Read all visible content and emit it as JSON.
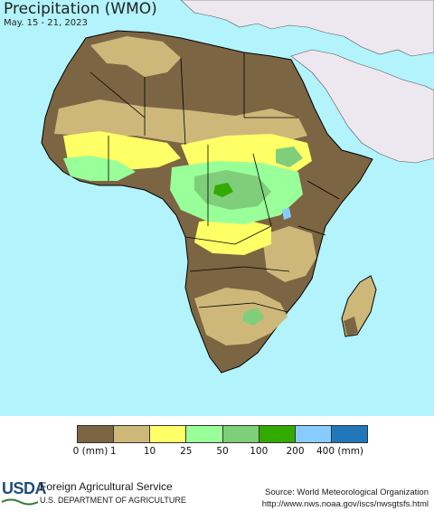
{
  "header": {
    "title": "Precipitation (WMO)",
    "subtitle": "May. 15 - 21, 2023"
  },
  "legend": {
    "colors": [
      "#7c6542",
      "#cdb87a",
      "#ffff66",
      "#99ff99",
      "#7fce7a",
      "#33aa00",
      "#88ccff",
      "#2277bb"
    ],
    "labels": [
      "0 (mm)",
      "1",
      "10",
      "25",
      "50",
      "100",
      "200",
      "400 (mm)"
    ]
  },
  "map": {
    "ocean_color": "#b3f3fb",
    "outside_land_color": "#ede8ef",
    "border_color": "#000000"
  },
  "footer": {
    "logo_text": "USDA",
    "agency": "Foreign Agricultural Service",
    "department": "U.S. DEPARTMENT OF AGRICULTURE",
    "source_line1": "Source: World Meteorological Organization",
    "source_line2": "http://www.nws.noaa.gov/iscs/nwsgtsfs.html"
  }
}
